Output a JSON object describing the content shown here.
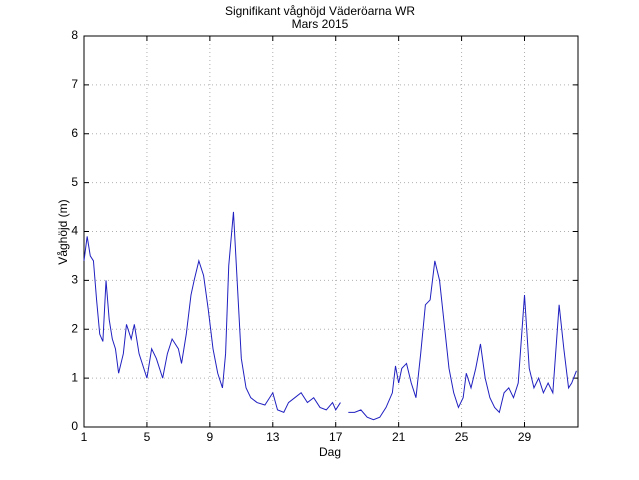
{
  "chart_data": {
    "type": "line",
    "title": "Signifikant våghöjd Väderöarna WR",
    "subtitle": "Mars 2015",
    "xlabel": "Dag",
    "ylabel": "Våghöjd (m)",
    "x": [
      1,
      1.2,
      1.4,
      1.6,
      1.8,
      2.0,
      2.2,
      2.4,
      2.6,
      2.8,
      3.0,
      3.2,
      3.5,
      3.7,
      4.0,
      4.2,
      4.5,
      4.8,
      5.0,
      5.3,
      5.6,
      6.0,
      6.3,
      6.6,
      7.0,
      7.2,
      7.5,
      7.8,
      8.0,
      8.3,
      8.6,
      8.9,
      9.2,
      9.5,
      9.8,
      10.0,
      10.2,
      10.5,
      10.8,
      11.0,
      11.3,
      11.6,
      12.0,
      12.5,
      13.0,
      13.3,
      13.7,
      14.0,
      14.4,
      14.8,
      15.2,
      15.6,
      16.0,
      16.4,
      16.8,
      17.0,
      17.3,
      17.6,
      17.8,
      18.2,
      18.6,
      19.0,
      19.4,
      19.8,
      20.2,
      20.6,
      20.8,
      21.0,
      21.2,
      21.5,
      21.8,
      22.1,
      22.4,
      22.7,
      23.0,
      23.3,
      23.6,
      23.9,
      24.2,
      24.5,
      24.8,
      25.1,
      25.3,
      25.6,
      25.9,
      26.2,
      26.5,
      26.8,
      27.1,
      27.4,
      27.7,
      28.0,
      28.3,
      28.6,
      29.0,
      29.3,
      29.6,
      29.9,
      30.2,
      30.5,
      30.8,
      31.2,
      31.5,
      31.8,
      32.0,
      32.3
    ],
    "series": [
      {
        "name": "Våghöjd",
        "color": "#2020c0",
        "values": [
          3.4,
          3.9,
          3.5,
          3.4,
          2.6,
          1.9,
          1.75,
          3.0,
          2.2,
          1.8,
          1.6,
          1.1,
          1.5,
          2.1,
          1.8,
          2.1,
          1.5,
          1.2,
          1.0,
          1.6,
          1.4,
          1.0,
          1.5,
          1.8,
          1.6,
          1.3,
          1.9,
          2.7,
          3.0,
          3.4,
          3.1,
          2.4,
          1.6,
          1.1,
          0.8,
          1.5,
          3.3,
          4.4,
          2.6,
          1.4,
          0.8,
          0.6,
          0.5,
          0.45,
          0.7,
          0.35,
          0.3,
          0.5,
          0.6,
          0.7,
          0.5,
          0.6,
          0.4,
          0.35,
          0.5,
          0.35,
          0.5,
          null,
          0.3,
          0.3,
          0.35,
          0.2,
          0.15,
          0.2,
          0.4,
          0.7,
          1.25,
          0.9,
          1.2,
          1.3,
          0.9,
          0.6,
          1.5,
          2.5,
          2.6,
          3.4,
          3.0,
          2.1,
          1.2,
          0.7,
          0.4,
          0.6,
          1.1,
          0.8,
          1.2,
          1.7,
          1.0,
          0.6,
          0.4,
          0.3,
          0.7,
          0.8,
          0.6,
          0.9,
          2.7,
          1.2,
          0.8,
          1.0,
          0.7,
          0.9,
          0.7,
          2.5,
          1.6,
          0.8,
          0.9,
          1.15
        ]
      }
    ],
    "xlim": [
      1,
      32.4
    ],
    "xticks": [
      1,
      5,
      9,
      13,
      17,
      21,
      25,
      29
    ],
    "ylim": [
      0,
      8
    ],
    "yticks": [
      0,
      1,
      2,
      3,
      4,
      5,
      6,
      7,
      8
    ],
    "grid": true
  }
}
